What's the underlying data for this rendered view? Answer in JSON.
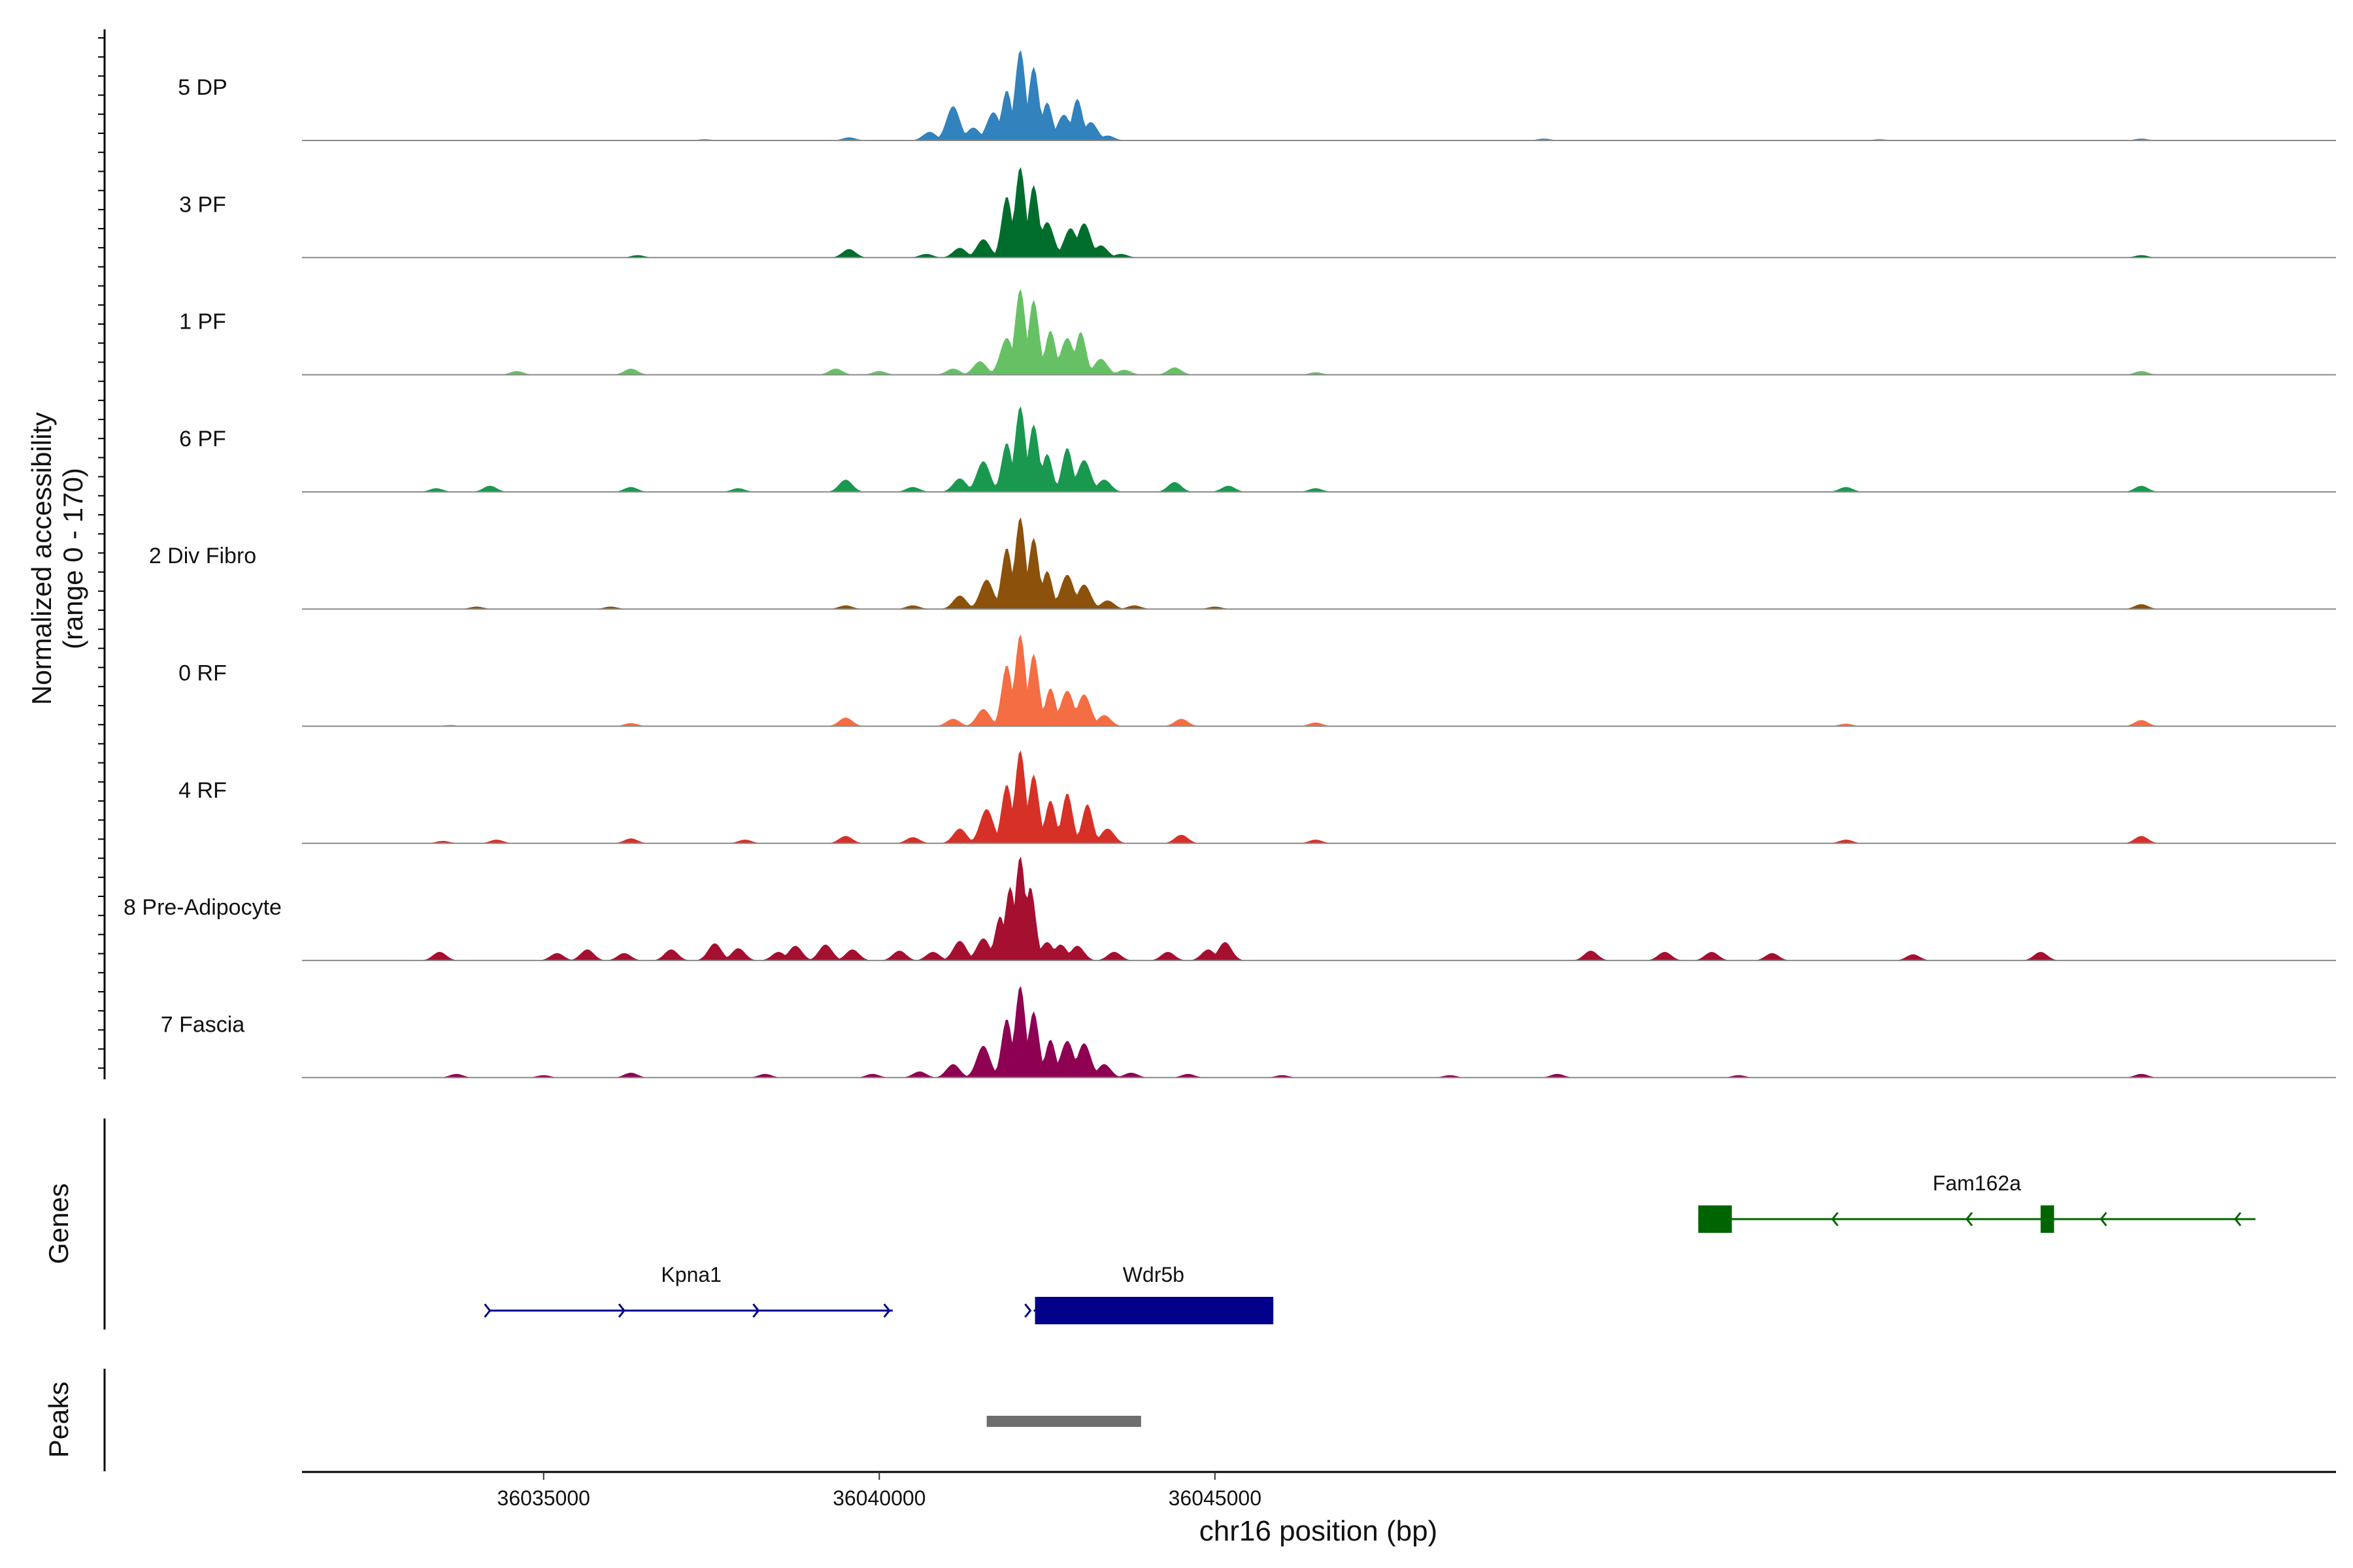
{
  "chart_data": {
    "type": "area",
    "title": "",
    "xlabel": "chr16 position (bp)",
    "ylabel": "Normalized accessibility",
    "ylabel_range": "(range 0 - 170)",
    "ylim": [
      0,
      170
    ],
    "xlim": [
      36031400,
      36061700
    ],
    "x_ticks": [
      36035000,
      36040000,
      36045000
    ],
    "x_tick_labels": [
      "36035000",
      "36040000",
      "36045000"
    ],
    "track_extent": [
      36032700,
      36061700
    ],
    "genes_label": "Genes",
    "peaks_label": "Peaks",
    "series": [
      {
        "name": "5 DP",
        "color": "#3182BD",
        "peaks": [
          [
            36039550,
            5
          ],
          [
            36040750,
            14
          ],
          [
            36041100,
            56
          ],
          [
            36041400,
            21
          ],
          [
            36041700,
            46
          ],
          [
            36041900,
            82
          ],
          [
            36042100,
            148
          ],
          [
            36042300,
            120
          ],
          [
            36042500,
            62
          ],
          [
            36042750,
            42
          ],
          [
            36042950,
            68
          ],
          [
            36043150,
            30
          ],
          [
            36043400,
            8
          ],
          [
            36037400,
            2
          ],
          [
            36049900,
            3
          ],
          [
            36054900,
            2
          ],
          [
            36058800,
            3
          ]
        ]
      },
      {
        "name": "3 PF",
        "color": "#006D2C",
        "peaks": [
          [
            36039550,
            14
          ],
          [
            36040700,
            6
          ],
          [
            36041200,
            16
          ],
          [
            36041550,
            30
          ],
          [
            36041900,
            100
          ],
          [
            36042100,
            148
          ],
          [
            36042300,
            118
          ],
          [
            36042500,
            58
          ],
          [
            36042850,
            48
          ],
          [
            36043050,
            56
          ],
          [
            36043300,
            20
          ],
          [
            36043600,
            6
          ],
          [
            36036400,
            4
          ],
          [
            36058800,
            4
          ]
        ]
      },
      {
        "name": "1 PF",
        "color": "#66C164",
        "peaks": [
          [
            36034600,
            6
          ],
          [
            36036300,
            10
          ],
          [
            36039350,
            10
          ],
          [
            36040000,
            6
          ],
          [
            36041100,
            10
          ],
          [
            36041500,
            22
          ],
          [
            36041900,
            60
          ],
          [
            36042100,
            140
          ],
          [
            36042300,
            122
          ],
          [
            36042550,
            72
          ],
          [
            36042800,
            60
          ],
          [
            36043000,
            70
          ],
          [
            36043300,
            26
          ],
          [
            36043650,
            8
          ],
          [
            36044400,
            12
          ],
          [
            36046500,
            4
          ],
          [
            36058800,
            6
          ]
        ]
      },
      {
        "name": "6 PF",
        "color": "#1A9850",
        "peaks": [
          [
            36033400,
            6
          ],
          [
            36034200,
            10
          ],
          [
            36036300,
            8
          ],
          [
            36037900,
            6
          ],
          [
            36039500,
            20
          ],
          [
            36040500,
            8
          ],
          [
            36041200,
            22
          ],
          [
            36041550,
            50
          ],
          [
            36041900,
            80
          ],
          [
            36042100,
            140
          ],
          [
            36042300,
            110
          ],
          [
            36042500,
            62
          ],
          [
            36042800,
            72
          ],
          [
            36043050,
            52
          ],
          [
            36043350,
            20
          ],
          [
            36044400,
            16
          ],
          [
            36045200,
            10
          ],
          [
            36046500,
            6
          ],
          [
            36054400,
            8
          ],
          [
            36058800,
            10
          ]
        ]
      },
      {
        "name": "2 Div Fibro",
        "color": "#8C510A",
        "peaks": [
          [
            36034000,
            4
          ],
          [
            36036000,
            4
          ],
          [
            36039500,
            6
          ],
          [
            36040500,
            6
          ],
          [
            36041200,
            22
          ],
          [
            36041600,
            48
          ],
          [
            36041900,
            100
          ],
          [
            36042100,
            150
          ],
          [
            36042300,
            116
          ],
          [
            36042500,
            62
          ],
          [
            36042800,
            56
          ],
          [
            36043050,
            40
          ],
          [
            36043400,
            14
          ],
          [
            36043800,
            6
          ],
          [
            36045000,
            4
          ],
          [
            36058800,
            8
          ]
        ]
      },
      {
        "name": "0 RF",
        "color": "#F46D43",
        "peaks": [
          [
            36033600,
            2
          ],
          [
            36036300,
            5
          ],
          [
            36039500,
            14
          ],
          [
            36041100,
            12
          ],
          [
            36041550,
            28
          ],
          [
            36041900,
            100
          ],
          [
            36042100,
            150
          ],
          [
            36042300,
            118
          ],
          [
            36042550,
            62
          ],
          [
            36042800,
            58
          ],
          [
            36043050,
            52
          ],
          [
            36043350,
            18
          ],
          [
            36044500,
            12
          ],
          [
            36046500,
            6
          ],
          [
            36054400,
            4
          ],
          [
            36058800,
            10
          ]
        ]
      },
      {
        "name": "4 RF",
        "color": "#D73027",
        "peaks": [
          [
            36033500,
            4
          ],
          [
            36034300,
            6
          ],
          [
            36036300,
            8
          ],
          [
            36038000,
            6
          ],
          [
            36039500,
            12
          ],
          [
            36040500,
            10
          ],
          [
            36041200,
            24
          ],
          [
            36041600,
            56
          ],
          [
            36041900,
            96
          ],
          [
            36042100,
            152
          ],
          [
            36042300,
            112
          ],
          [
            36042550,
            70
          ],
          [
            36042800,
            82
          ],
          [
            36043100,
            64
          ],
          [
            36043400,
            24
          ],
          [
            36044500,
            14
          ],
          [
            36046500,
            6
          ],
          [
            36054400,
            6
          ],
          [
            36058800,
            12
          ]
        ]
      },
      {
        "name": "8 Pre-Adipocyte",
        "color": "#A50F30",
        "peaks": [
          [
            36033450,
            14
          ],
          [
            36035200,
            12
          ],
          [
            36035650,
            18
          ],
          [
            36036200,
            12
          ],
          [
            36036900,
            18
          ],
          [
            36037550,
            28
          ],
          [
            36037900,
            20
          ],
          [
            36038500,
            14
          ],
          [
            36038750,
            24
          ],
          [
            36039200,
            26
          ],
          [
            36039600,
            18
          ],
          [
            36040300,
            16
          ],
          [
            36040800,
            14
          ],
          [
            36041200,
            32
          ],
          [
            36041550,
            36
          ],
          [
            36041800,
            72
          ],
          [
            36041950,
            120
          ],
          [
            36042100,
            170
          ],
          [
            36042250,
            120
          ],
          [
            36042500,
            30
          ],
          [
            36042700,
            26
          ],
          [
            36042950,
            24
          ],
          [
            36043500,
            14
          ],
          [
            36044300,
            14
          ],
          [
            36044900,
            18
          ],
          [
            36045150,
            30
          ],
          [
            36050600,
            16
          ],
          [
            36051700,
            14
          ],
          [
            36052400,
            14
          ],
          [
            36053300,
            12
          ],
          [
            36055400,
            10
          ],
          [
            36057300,
            14
          ]
        ]
      },
      {
        "name": "7 Fascia",
        "color": "#8E0152",
        "peaks": [
          [
            36033700,
            6
          ],
          [
            36035000,
            4
          ],
          [
            36036300,
            8
          ],
          [
            36038300,
            6
          ],
          [
            36039900,
            6
          ],
          [
            36040600,
            10
          ],
          [
            36041100,
            22
          ],
          [
            36041550,
            52
          ],
          [
            36041900,
            96
          ],
          [
            36042100,
            150
          ],
          [
            36042300,
            108
          ],
          [
            36042550,
            62
          ],
          [
            36042800,
            60
          ],
          [
            36043050,
            56
          ],
          [
            36043350,
            22
          ],
          [
            36043750,
            8
          ],
          [
            36044600,
            6
          ],
          [
            36046000,
            4
          ],
          [
            36048500,
            4
          ],
          [
            36050100,
            6
          ],
          [
            36052800,
            4
          ],
          [
            36058800,
            6
          ]
        ]
      }
    ],
    "genes": [
      {
        "name": "Kpna1",
        "strand": "+",
        "color": "#00008B",
        "row": 1,
        "start": 36034200,
        "end": 36040200,
        "exons": [],
        "arrows": [
          36034200,
          36036200,
          36038200,
          36040150
        ]
      },
      {
        "name": "Wdr5b",
        "strand": "+",
        "color": "#00008B",
        "row": 1,
        "start": 36042300,
        "end": 36045870,
        "exons": [
          [
            36042320,
            36045870
          ]
        ],
        "arrows": [
          36042250
        ]
      },
      {
        "name": "Fam162a",
        "strand": "-",
        "color": "#006400",
        "row": 0,
        "start": 36052200,
        "end": 36060500,
        "exons": [
          [
            36052200,
            36052700
          ],
          [
            36057300,
            36057500
          ]
        ],
        "arrows": [
          36054200,
          36056200,
          36058200,
          36060200
        ]
      }
    ],
    "peaks_track": [
      {
        "start": 36041600,
        "end": 36043900,
        "color": "#6E6E6E"
      }
    ]
  }
}
